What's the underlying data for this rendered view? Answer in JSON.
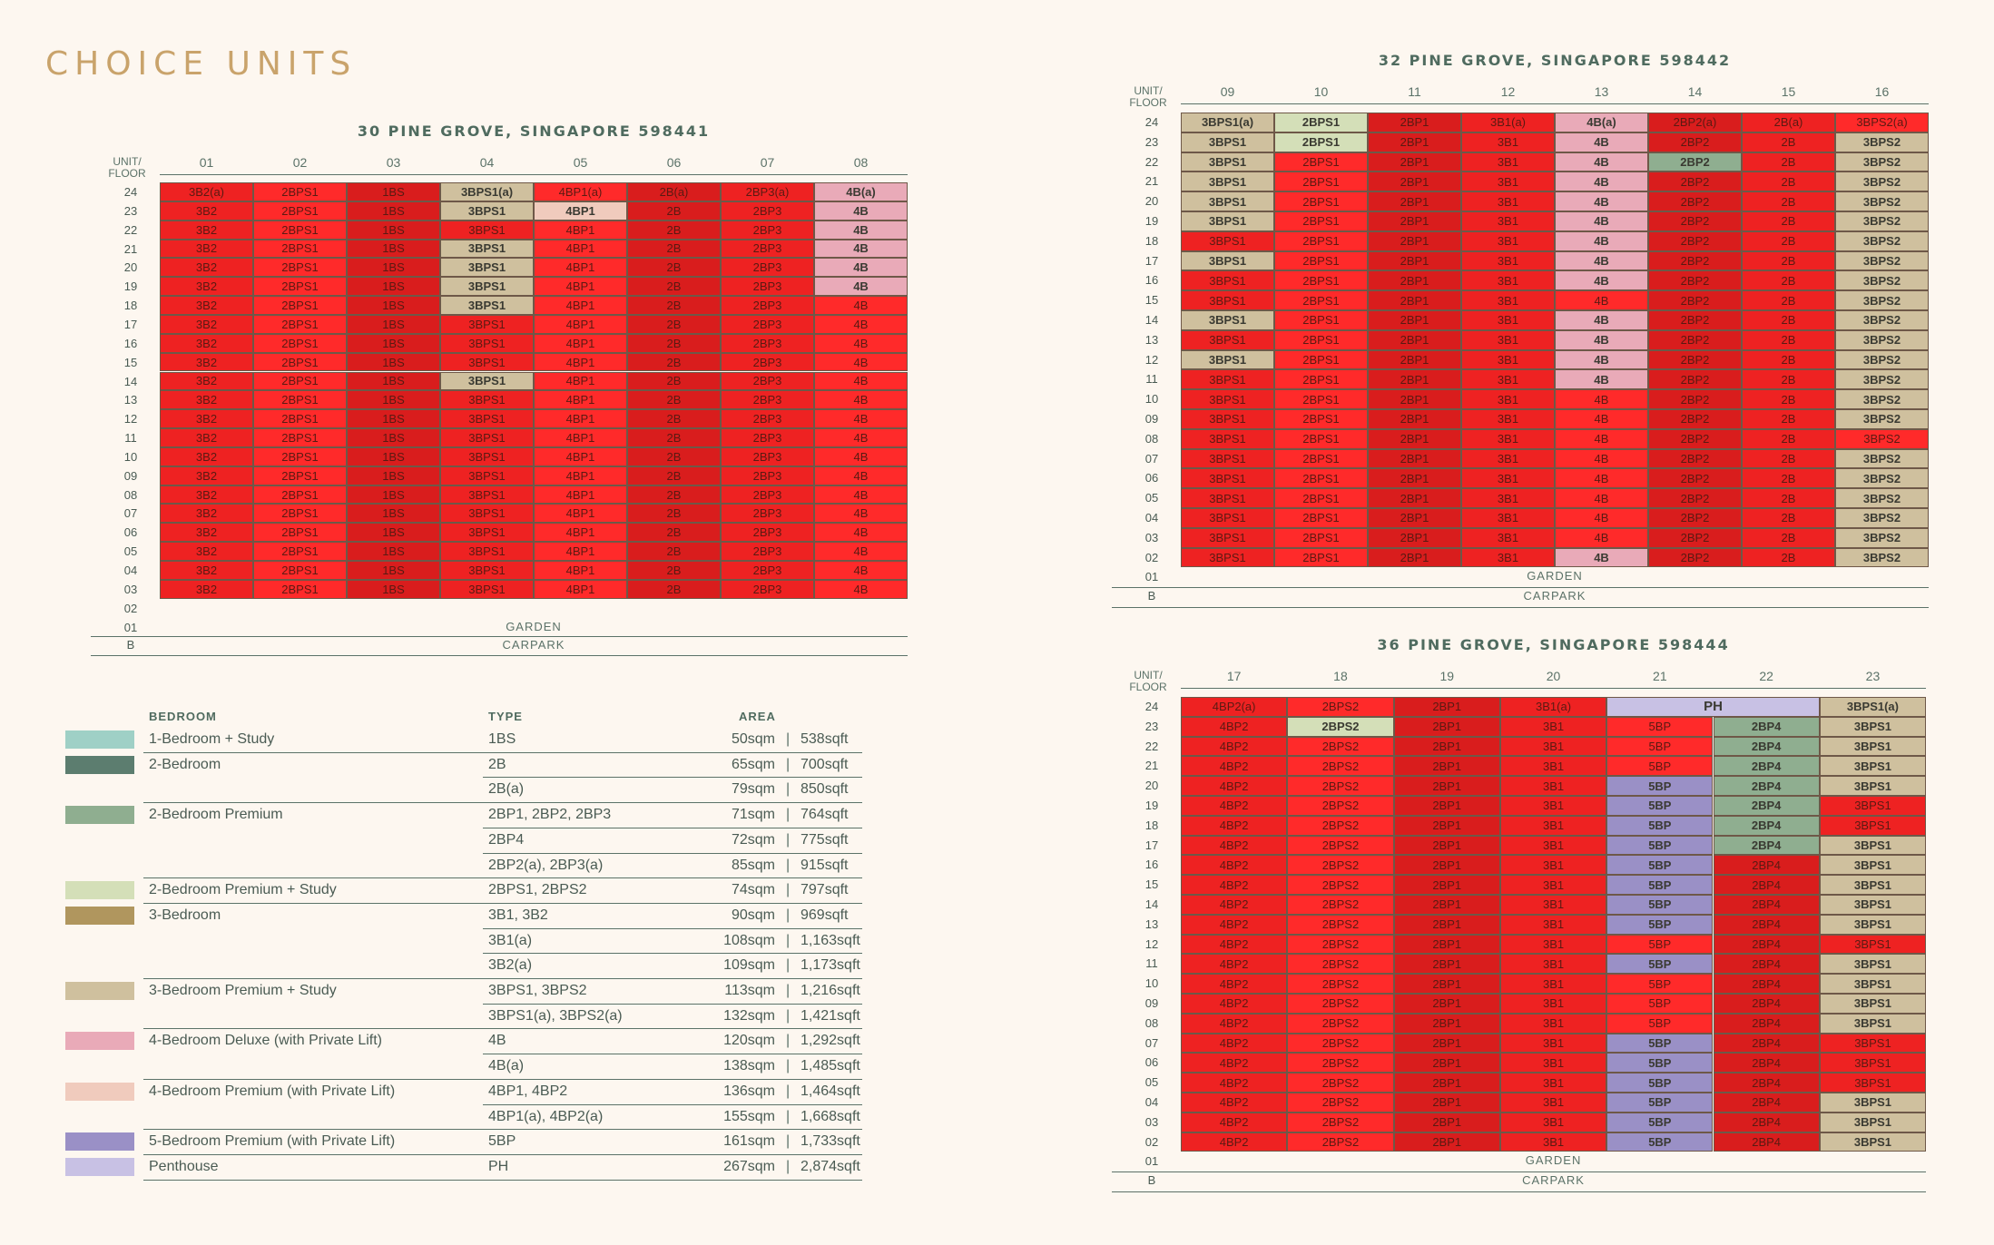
{
  "title": "CHOICE UNITS",
  "common": {
    "unit_floor_label": "UNIT/\nFLOOR",
    "garden": "GARDEN",
    "carpark": "CARPARK",
    "b": "B"
  },
  "colors": {
    "1BS": "#9fd0c6",
    "2B": "#5c7d6f",
    "2BP": "#8fae90",
    "2BPS": "#d4dfb8",
    "3B": "#b0965e",
    "3BPS": "#cfc09e",
    "4BD": "#e9aab8",
    "4BP": "#f0cbbd",
    "5BP": "#9a90c6",
    "PH": "#c8c1e4",
    "red1": "#ee2222",
    "red2": "#ff2a2a",
    "red3": "#d91d1d"
  },
  "buildings": [
    {
      "name": "30 PINE GROVE, SINGAPORE 598441",
      "columns": [
        "01",
        "02",
        "03",
        "04",
        "05",
        "06",
        "07",
        "08"
      ],
      "floors": [
        "24",
        "23",
        "22",
        "21",
        "20",
        "19",
        "18",
        "17",
        "16",
        "15",
        "14",
        "13",
        "12",
        "11",
        "10",
        "09",
        "08",
        "07",
        "06",
        "05",
        "04",
        "03"
      ],
      "extra_floors": [
        "02",
        "01"
      ],
      "ground_labels": [
        "GARDEN",
        "CARPARK"
      ],
      "col_types": [
        "3B2",
        "2BPS1",
        "1BS",
        "3BPS1",
        "4BP1",
        "2B",
        "2BP3",
        "4B"
      ],
      "highlights": [
        {
          "floor": "24",
          "col": "01",
          "text": "3B2(a)",
          "kind": "red"
        },
        {
          "floor": "24",
          "col": "04",
          "text": "3BPS1(a)",
          "kind": "3BPS"
        },
        {
          "floor": "24",
          "col": "05",
          "text": "4BP1(a)",
          "kind": "red"
        },
        {
          "floor": "24",
          "col": "06",
          "text": "2B(a)",
          "kind": "red"
        },
        {
          "floor": "24",
          "col": "07",
          "text": "2BP3(a)",
          "kind": "red"
        },
        {
          "floor": "24",
          "col": "08",
          "text": "4B(a)",
          "kind": "4BD"
        },
        {
          "floor": "23",
          "col": "04",
          "text": "3BPS1",
          "kind": "3BPS"
        },
        {
          "floor": "23",
          "col": "05",
          "text": "4BP1",
          "kind": "4BP"
        },
        {
          "floor": "23",
          "col": "08",
          "text": "4B",
          "kind": "4BD"
        },
        {
          "floor": "22",
          "col": "08",
          "text": "4B",
          "kind": "4BD"
        },
        {
          "floor": "21",
          "col": "04",
          "text": "3BPS1",
          "kind": "3BPS"
        },
        {
          "floor": "21",
          "col": "08",
          "text": "4B",
          "kind": "4BD"
        },
        {
          "floor": "20",
          "col": "04",
          "text": "3BPS1",
          "kind": "3BPS"
        },
        {
          "floor": "20",
          "col": "08",
          "text": "4B",
          "kind": "4BD"
        },
        {
          "floor": "19",
          "col": "04",
          "text": "3BPS1",
          "kind": "3BPS"
        },
        {
          "floor": "19",
          "col": "08",
          "text": "4B",
          "kind": "4BD"
        },
        {
          "floor": "18",
          "col": "04",
          "text": "3BPS1",
          "kind": "3BPS"
        },
        {
          "floor": "14",
          "col": "04",
          "text": "3BPS1",
          "kind": "3BPS"
        }
      ]
    },
    {
      "name": "32 PINE GROVE, SINGAPORE 598442",
      "columns": [
        "09",
        "10",
        "11",
        "12",
        "13",
        "14",
        "15",
        "16"
      ],
      "floors": [
        "24",
        "23",
        "22",
        "21",
        "20",
        "19",
        "18",
        "17",
        "16",
        "15",
        "14",
        "13",
        "12",
        "11",
        "10",
        "09",
        "08",
        "07",
        "06",
        "05",
        "04",
        "03",
        "02"
      ],
      "extra_floors": [
        "01"
      ],
      "ground_labels": [
        "GARDEN",
        "CARPARK"
      ],
      "col_types": [
        "3BPS1",
        "2BPS1",
        "2BP1",
        "3B1",
        "4B",
        "2BP2",
        "2B",
        "3BPS2"
      ],
      "highlights": [
        {
          "floor": "24",
          "col": "09",
          "text": "3BPS1(a)",
          "kind": "3BPS"
        },
        {
          "floor": "24",
          "col": "10",
          "text": "2BPS1",
          "kind": "2BPS"
        },
        {
          "floor": "24",
          "col": "12",
          "text": "3B1(a)",
          "kind": "red"
        },
        {
          "floor": "24",
          "col": "13",
          "text": "4B(a)",
          "kind": "4BD"
        },
        {
          "floor": "24",
          "col": "14",
          "text": "2BP2(a)",
          "kind": "red"
        },
        {
          "floor": "24",
          "col": "15",
          "text": "2B(a)",
          "kind": "red"
        },
        {
          "floor": "24",
          "col": "16",
          "text": "3BPS2(a)",
          "kind": "red"
        },
        {
          "floor": "23",
          "col": "09",
          "text": "3BPS1",
          "kind": "3BPS"
        },
        {
          "floor": "23",
          "col": "10",
          "text": "2BPS1",
          "kind": "2BPS"
        },
        {
          "floor": "23",
          "col": "13",
          "text": "4B",
          "kind": "4BD"
        },
        {
          "floor": "23",
          "col": "16",
          "text": "3BPS2",
          "kind": "3BPS"
        },
        {
          "floor": "22",
          "col": "09",
          "text": "3BPS1",
          "kind": "3BPS"
        },
        {
          "floor": "22",
          "col": "13",
          "text": "4B",
          "kind": "4BD"
        },
        {
          "floor": "22",
          "col": "14",
          "text": "2BP2",
          "kind": "2BP"
        },
        {
          "floor": "22",
          "col": "16",
          "text": "3BPS2",
          "kind": "3BPS"
        },
        {
          "floor": "21",
          "col": "09",
          "text": "3BPS1",
          "kind": "3BPS"
        },
        {
          "floor": "21",
          "col": "13",
          "text": "4B",
          "kind": "4BD"
        },
        {
          "floor": "21",
          "col": "16",
          "text": "3BPS2",
          "kind": "3BPS"
        },
        {
          "floor": "20",
          "col": "09",
          "text": "3BPS1",
          "kind": "3BPS"
        },
        {
          "floor": "20",
          "col": "13",
          "text": "4B",
          "kind": "4BD"
        },
        {
          "floor": "20",
          "col": "16",
          "text": "3BPS2",
          "kind": "3BPS"
        },
        {
          "floor": "19",
          "col": "09",
          "text": "3BPS1",
          "kind": "3BPS"
        },
        {
          "floor": "19",
          "col": "13",
          "text": "4B",
          "kind": "4BD"
        },
        {
          "floor": "19",
          "col": "16",
          "text": "3BPS2",
          "kind": "3BPS"
        },
        {
          "floor": "18",
          "col": "13",
          "text": "4B",
          "kind": "4BD"
        },
        {
          "floor": "18",
          "col": "16",
          "text": "3BPS2",
          "kind": "3BPS"
        },
        {
          "floor": "17",
          "col": "09",
          "text": "3BPS1",
          "kind": "3BPS"
        },
        {
          "floor": "17",
          "col": "13",
          "text": "4B",
          "kind": "4BD"
        },
        {
          "floor": "17",
          "col": "16",
          "text": "3BPS2",
          "kind": "3BPS"
        },
        {
          "floor": "16",
          "col": "13",
          "text": "4B",
          "kind": "4BD"
        },
        {
          "floor": "16",
          "col": "16",
          "text": "3BPS2",
          "kind": "3BPS"
        },
        {
          "floor": "15",
          "col": "16",
          "text": "3BPS2",
          "kind": "3BPS"
        },
        {
          "floor": "14",
          "col": "09",
          "text": "3BPS1",
          "kind": "3BPS"
        },
        {
          "floor": "14",
          "col": "13",
          "text": "4B",
          "kind": "4BD"
        },
        {
          "floor": "14",
          "col": "16",
          "text": "3BPS2",
          "kind": "3BPS"
        },
        {
          "floor": "13",
          "col": "13",
          "text": "4B",
          "kind": "4BD"
        },
        {
          "floor": "13",
          "col": "16",
          "text": "3BPS2",
          "kind": "3BPS"
        },
        {
          "floor": "12",
          "col": "09",
          "text": "3BPS1",
          "kind": "3BPS"
        },
        {
          "floor": "12",
          "col": "13",
          "text": "4B",
          "kind": "4BD"
        },
        {
          "floor": "12",
          "col": "16",
          "text": "3BPS2",
          "kind": "3BPS"
        },
        {
          "floor": "11",
          "col": "13",
          "text": "4B",
          "kind": "4BD"
        },
        {
          "floor": "11",
          "col": "16",
          "text": "3BPS2",
          "kind": "3BPS"
        },
        {
          "floor": "10",
          "col": "16",
          "text": "3BPS2",
          "kind": "3BPS"
        },
        {
          "floor": "09",
          "col": "16",
          "text": "3BPS2",
          "kind": "3BPS"
        },
        {
          "floor": "07",
          "col": "16",
          "text": "3BPS2",
          "kind": "3BPS"
        },
        {
          "floor": "06",
          "col": "16",
          "text": "3BPS2",
          "kind": "3BPS"
        },
        {
          "floor": "05",
          "col": "16",
          "text": "3BPS2",
          "kind": "3BPS"
        },
        {
          "floor": "04",
          "col": "16",
          "text": "3BPS2",
          "kind": "3BPS"
        },
        {
          "floor": "03",
          "col": "16",
          "text": "3BPS2",
          "kind": "3BPS"
        },
        {
          "floor": "02",
          "col": "13",
          "text": "4B",
          "kind": "4BD"
        },
        {
          "floor": "02",
          "col": "16",
          "text": "3BPS2",
          "kind": "3BPS"
        }
      ]
    },
    {
      "name": "36 PINE GROVE, SINGAPORE 598444",
      "columns": [
        "17",
        "18",
        "19",
        "20",
        "21",
        "22",
        "23"
      ],
      "floors": [
        "24",
        "23",
        "22",
        "21",
        "20",
        "19",
        "18",
        "17",
        "16",
        "15",
        "14",
        "13",
        "12",
        "11",
        "10",
        "09",
        "08",
        "07",
        "06",
        "05",
        "04",
        "03",
        "02"
      ],
      "extra_floors": [
        "01"
      ],
      "ground_labels": [
        "GARDEN",
        "CARPARK"
      ],
      "col_types": [
        "4BP2",
        "2BPS2",
        "2BP1",
        "3B1",
        "5BP",
        "2BP4",
        "3BPS1"
      ],
      "highlights": [
        {
          "floor": "24",
          "col": "17",
          "text": "4BP2(a)",
          "kind": "red"
        },
        {
          "floor": "24",
          "col": "20",
          "text": "3B1(a)",
          "kind": "red"
        },
        {
          "floor": "24",
          "col": "23",
          "text": "3BPS1(a)",
          "kind": "3BPS"
        },
        {
          "floor": "23",
          "col": "18",
          "text": "2BPS2",
          "kind": "2BPS"
        },
        {
          "floor": "23",
          "col": "22",
          "text": "2BP4",
          "kind": "2BP"
        },
        {
          "floor": "23",
          "col": "23",
          "text": "3BPS1",
          "kind": "3BPS"
        },
        {
          "floor": "22",
          "col": "22",
          "text": "2BP4",
          "kind": "2BP"
        },
        {
          "floor": "22",
          "col": "23",
          "text": "3BPS1",
          "kind": "3BPS"
        },
        {
          "floor": "21",
          "col": "22",
          "text": "2BP4",
          "kind": "2BP"
        },
        {
          "floor": "21",
          "col": "23",
          "text": "3BPS1",
          "kind": "3BPS"
        },
        {
          "floor": "20",
          "col": "21",
          "text": "5BP",
          "kind": "5BP"
        },
        {
          "floor": "20",
          "col": "22",
          "text": "2BP4",
          "kind": "2BP"
        },
        {
          "floor": "20",
          "col": "23",
          "text": "3BPS1",
          "kind": "3BPS"
        },
        {
          "floor": "19",
          "col": "21",
          "text": "5BP",
          "kind": "5BP"
        },
        {
          "floor": "19",
          "col": "22",
          "text": "2BP4",
          "kind": "2BP"
        },
        {
          "floor": "18",
          "col": "21",
          "text": "5BP",
          "kind": "5BP"
        },
        {
          "floor": "18",
          "col": "22",
          "text": "2BP4",
          "kind": "2BP"
        },
        {
          "floor": "17",
          "col": "21",
          "text": "5BP",
          "kind": "5BP"
        },
        {
          "floor": "17",
          "col": "22",
          "text": "2BP4",
          "kind": "2BP"
        },
        {
          "floor": "17",
          "col": "23",
          "text": "3BPS1",
          "kind": "3BPS"
        },
        {
          "floor": "16",
          "col": "21",
          "text": "5BP",
          "kind": "5BP"
        },
        {
          "floor": "16",
          "col": "23",
          "text": "3BPS1",
          "kind": "3BPS"
        },
        {
          "floor": "15",
          "col": "21",
          "text": "5BP",
          "kind": "5BP"
        },
        {
          "floor": "15",
          "col": "23",
          "text": "3BPS1",
          "kind": "3BPS"
        },
        {
          "floor": "14",
          "col": "21",
          "text": "5BP",
          "kind": "5BP"
        },
        {
          "floor": "14",
          "col": "23",
          "text": "3BPS1",
          "kind": "3BPS"
        },
        {
          "floor": "13",
          "col": "21",
          "text": "5BP",
          "kind": "5BP"
        },
        {
          "floor": "13",
          "col": "23",
          "text": "3BPS1",
          "kind": "3BPS"
        },
        {
          "floor": "11",
          "col": "21",
          "text": "5BP",
          "kind": "5BP"
        },
        {
          "floor": "11",
          "col": "23",
          "text": "3BPS1",
          "kind": "3BPS"
        },
        {
          "floor": "10",
          "col": "23",
          "text": "3BPS1",
          "kind": "3BPS"
        },
        {
          "floor": "09",
          "col": "23",
          "text": "3BPS1",
          "kind": "3BPS"
        },
        {
          "floor": "08",
          "col": "23",
          "text": "3BPS1",
          "kind": "3BPS"
        },
        {
          "floor": "07",
          "col": "21",
          "text": "5BP",
          "kind": "5BP"
        },
        {
          "floor": "06",
          "col": "21",
          "text": "5BP",
          "kind": "5BP"
        },
        {
          "floor": "05",
          "col": "21",
          "text": "5BP",
          "kind": "5BP"
        },
        {
          "floor": "04",
          "col": "21",
          "text": "5BP",
          "kind": "5BP"
        },
        {
          "floor": "04",
          "col": "23",
          "text": "3BPS1",
          "kind": "3BPS"
        },
        {
          "floor": "03",
          "col": "21",
          "text": "5BP",
          "kind": "5BP"
        },
        {
          "floor": "03",
          "col": "23",
          "text": "3BPS1",
          "kind": "3BPS"
        },
        {
          "floor": "02",
          "col": "21",
          "text": "5BP",
          "kind": "5BP"
        },
        {
          "floor": "02",
          "col": "23",
          "text": "3BPS1",
          "kind": "3BPS"
        }
      ],
      "ph": {
        "text": "PH",
        "floor": "24",
        "from": "21",
        "to": "22"
      }
    }
  ],
  "legend": {
    "headers": {
      "bedroom": "BEDROOM",
      "type": "TYPE",
      "area": "AREA"
    },
    "rows": [
      {
        "swatch": "1BS",
        "bedroom": "1-Bedroom + Study",
        "type": "1BS",
        "sqm": "50sqm",
        "sqft": "538sqft"
      },
      {
        "swatch": "2B",
        "bedroom": "2-Bedroom",
        "type": "2B",
        "sqm": "65sqm",
        "sqft": "700sqft"
      },
      {
        "swatch": "",
        "bedroom": "",
        "type": "2B(a)",
        "sqm": "79sqm",
        "sqft": "850sqft"
      },
      {
        "swatch": "2BP",
        "bedroom": "2-Bedroom Premium",
        "type": "2BP1, 2BP2, 2BP3",
        "sqm": "71sqm",
        "sqft": "764sqft"
      },
      {
        "swatch": "",
        "bedroom": "",
        "type": "2BP4",
        "sqm": "72sqm",
        "sqft": "775sqft"
      },
      {
        "swatch": "",
        "bedroom": "",
        "type": "2BP2(a), 2BP3(a)",
        "sqm": "85sqm",
        "sqft": "915sqft"
      },
      {
        "swatch": "2BPS",
        "bedroom": "2-Bedroom Premium + Study",
        "type": "2BPS1, 2BPS2",
        "sqm": "74sqm",
        "sqft": "797sqft"
      },
      {
        "swatch": "3B",
        "bedroom": "3-Bedroom",
        "type": "3B1, 3B2",
        "sqm": "90sqm",
        "sqft": "969sqft"
      },
      {
        "swatch": "",
        "bedroom": "",
        "type": "3B1(a)",
        "sqm": "108sqm",
        "sqft": "1,163sqft"
      },
      {
        "swatch": "",
        "bedroom": "",
        "type": "3B2(a)",
        "sqm": "109sqm",
        "sqft": "1,173sqft"
      },
      {
        "swatch": "3BPS",
        "bedroom": "3-Bedroom Premium + Study",
        "type": "3BPS1, 3BPS2",
        "sqm": "113sqm",
        "sqft": "1,216sqft"
      },
      {
        "swatch": "",
        "bedroom": "",
        "type": "3BPS1(a), 3BPS2(a)",
        "sqm": "132sqm",
        "sqft": "1,421sqft"
      },
      {
        "swatch": "4BD",
        "bedroom": "4-Bedroom Deluxe (with Private Lift)",
        "type": "4B",
        "sqm": "120sqm",
        "sqft": "1,292sqft"
      },
      {
        "swatch": "",
        "bedroom": "",
        "type": "4B(a)",
        "sqm": "138sqm",
        "sqft": "1,485sqft"
      },
      {
        "swatch": "4BP",
        "bedroom": "4-Bedroom Premium (with Private Lift)",
        "type": "4BP1, 4BP2",
        "sqm": "136sqm",
        "sqft": "1,464sqft"
      },
      {
        "swatch": "",
        "bedroom": "",
        "type": "4BP1(a), 4BP2(a)",
        "sqm": "155sqm",
        "sqft": "1,668sqft"
      },
      {
        "swatch": "5BP",
        "bedroom": "5-Bedroom Premium (with Private Lift)",
        "type": "5BP",
        "sqm": "161sqm",
        "sqft": "1,733sqft"
      },
      {
        "swatch": "PH",
        "bedroom": "Penthouse",
        "type": "PH",
        "sqm": "267sqm",
        "sqft": "2,874sqft"
      }
    ]
  }
}
